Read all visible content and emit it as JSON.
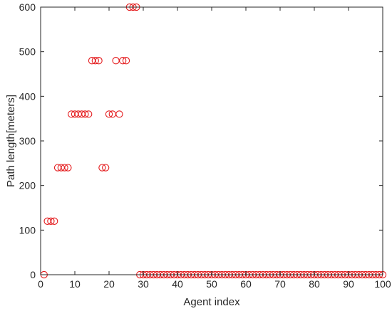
{
  "chart_data": {
    "type": "scatter",
    "title": "",
    "xlabel": "Agent index",
    "ylabel": "Path length[meters]",
    "xlim": [
      0,
      100
    ],
    "ylim": [
      0,
      600
    ],
    "xticks": [
      0,
      10,
      20,
      30,
      40,
      50,
      60,
      70,
      80,
      90,
      100
    ],
    "yticks": [
      0,
      100,
      200,
      300,
      400,
      500,
      600
    ],
    "grid": false,
    "box": true,
    "marker": "circle",
    "marker_color": "#e41a1c",
    "series": [
      {
        "x": [
          1,
          2,
          3,
          4,
          5,
          6,
          7,
          8,
          9,
          10,
          11,
          12,
          13,
          14,
          15,
          16,
          17,
          18,
          19,
          20,
          21,
          22,
          23,
          24,
          25,
          26,
          27,
          28,
          29,
          30,
          31,
          32,
          33,
          34,
          35,
          36,
          37,
          38,
          39,
          40,
          41,
          42,
          43,
          44,
          45,
          46,
          47,
          48,
          49,
          50,
          51,
          52,
          53,
          54,
          55,
          56,
          57,
          58,
          59,
          60,
          61,
          62,
          63,
          64,
          65,
          66,
          67,
          68,
          69,
          70,
          71,
          72,
          73,
          74,
          75,
          76,
          77,
          78,
          79,
          80,
          81,
          82,
          83,
          84,
          85,
          86,
          87,
          88,
          89,
          90,
          91,
          92,
          93,
          94,
          95,
          96,
          97,
          98,
          99,
          100
        ],
        "y": [
          0,
          120,
          120,
          120,
          240,
          240,
          240,
          240,
          360,
          360,
          360,
          360,
          360,
          360,
          480,
          480,
          480,
          240,
          240,
          360,
          360,
          480,
          360,
          480,
          480,
          600,
          600,
          600,
          0,
          0,
          0,
          0,
          0,
          0,
          0,
          0,
          0,
          0,
          0,
          0,
          0,
          0,
          0,
          0,
          0,
          0,
          0,
          0,
          0,
          0,
          0,
          0,
          0,
          0,
          0,
          0,
          0,
          0,
          0,
          0,
          0,
          0,
          0,
          0,
          0,
          0,
          0,
          0,
          0,
          0,
          0,
          0,
          0,
          0,
          0,
          0,
          0,
          0,
          0,
          0,
          0,
          0,
          0,
          0,
          0,
          0,
          0,
          0,
          0,
          0,
          0,
          0,
          0,
          0,
          0,
          0,
          0,
          0,
          0,
          0
        ]
      }
    ]
  }
}
